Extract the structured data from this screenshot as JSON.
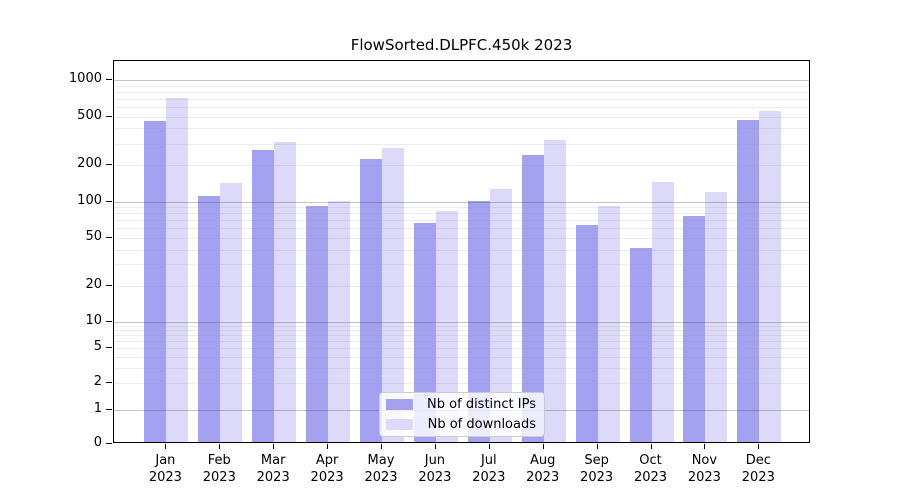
{
  "title": "FlowSorted.DLPFC.450k 2023",
  "colors": {
    "distinct_ips_bar": "#a3a1f0",
    "downloads_bar": "#dcdaf8",
    "axis": "#000000",
    "legend_border": "#cccccc"
  },
  "chart_data": {
    "type": "bar",
    "title": "FlowSorted.DLPFC.450k 2023",
    "categories": [
      "Jan 2023",
      "Feb 2023",
      "Mar 2023",
      "Apr 2023",
      "May 2023",
      "Jun 2023",
      "Jul 2023",
      "Aug 2023",
      "Sep 2023",
      "Oct 2023",
      "Nov 2023",
      "Dec 2023"
    ],
    "series": [
      {
        "name": "Nb of distinct IPs",
        "color": "#a3a1f0",
        "values": [
          445,
          108,
          255,
          89,
          218,
          64,
          97,
          234,
          62,
          40,
          73,
          453
        ]
      },
      {
        "name": "Nb of downloads",
        "color": "#dcdaf8",
        "values": [
          690,
          136,
          300,
          97,
          264,
          80,
          123,
          307,
          89,
          140,
          116,
          537
        ]
      }
    ],
    "xlabel": "",
    "ylabel": "",
    "yscale": "symlog",
    "yticks": [
      0,
      1,
      2,
      5,
      10,
      20,
      50,
      100,
      200,
      500,
      1000
    ],
    "ylim": [
      0,
      1400
    ],
    "grid": true,
    "legend_position": "lower center"
  }
}
